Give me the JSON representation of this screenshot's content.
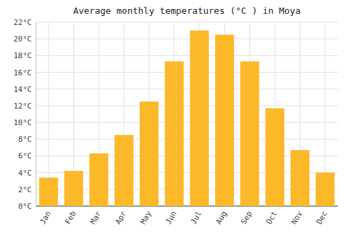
{
  "chart_data": {
    "type": "bar",
    "title": "Average monthly temperatures (°C ) in Moya",
    "categories": [
      "Jan",
      "Feb",
      "Mar",
      "Apr",
      "May",
      "Jun",
      "Jul",
      "Aug",
      "Sep",
      "Oct",
      "Nov",
      "Dec"
    ],
    "values": [
      3.4,
      4.2,
      6.3,
      8.5,
      12.5,
      17.3,
      21.0,
      20.5,
      17.3,
      11.7,
      6.7,
      4.0
    ],
    "color": "#FBB829",
    "ylim": [
      0,
      22
    ],
    "yticks": [
      {
        "value": 0,
        "label": "0°C"
      },
      {
        "value": 2,
        "label": "2°C"
      },
      {
        "value": 4,
        "label": "4°C"
      },
      {
        "value": 6,
        "label": "6°C"
      },
      {
        "value": 8,
        "label": "8°C"
      },
      {
        "value": 10,
        "label": "10°C"
      },
      {
        "value": 12,
        "label": "12°C"
      },
      {
        "value": 14,
        "label": "14°C"
      },
      {
        "value": 16,
        "label": "16°C"
      },
      {
        "value": 18,
        "label": "18°C"
      },
      {
        "value": 20,
        "label": "20°C"
      },
      {
        "value": 22,
        "label": "22°C"
      }
    ],
    "grid": true
  }
}
